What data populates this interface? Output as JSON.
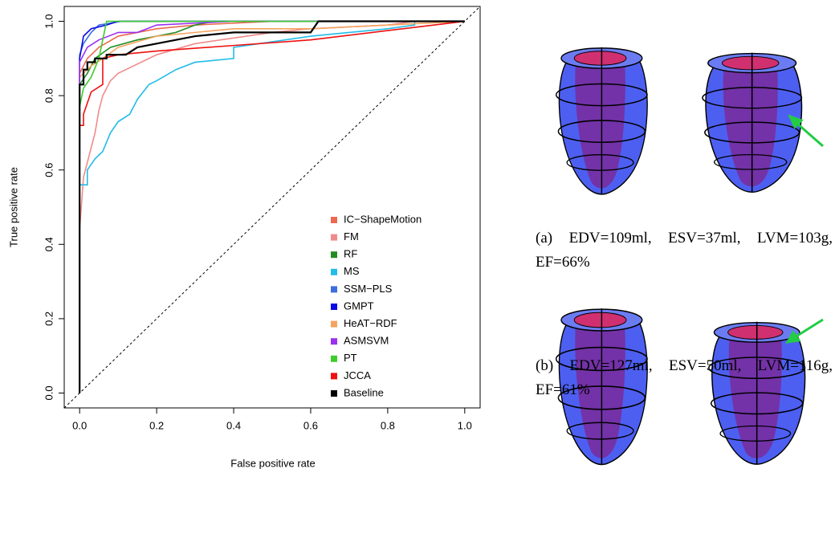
{
  "chart_data": {
    "type": "line",
    "xlabel": "False positive rate",
    "ylabel": "True positive rate",
    "xlim": [
      -0.04,
      1.04
    ],
    "ylim": [
      -0.04,
      1.04
    ],
    "xticks": [
      {
        "value": 0,
        "label": "0.0"
      },
      0.2,
      0.4,
      0.6,
      0.8,
      {
        "value": 1,
        "label": "1.0"
      }
    ],
    "yticks": [
      {
        "value": 0,
        "label": "0.0"
      },
      0.2,
      0.4,
      0.6,
      0.8,
      {
        "value": 1,
        "label": "1.0"
      }
    ],
    "diagonal": true,
    "legend": "bottom-right",
    "series": [
      {
        "name": "IC−ShapeMotion",
        "color": "#ec6a50",
        "x": [
          0,
          0,
          0.02,
          0.05,
          0.1,
          0.2,
          0.3,
          0.5,
          1
        ],
        "values": [
          0,
          0.86,
          0.9,
          0.93,
          0.96,
          0.98,
          0.99,
          1,
          1
        ]
      },
      {
        "name": "FM",
        "color": "#f08a8a",
        "x": [
          0,
          0,
          0.01,
          0.02,
          0.03,
          0.04,
          0.05,
          0.06,
          0.08,
          0.1,
          0.14,
          0.2,
          0.3,
          0.5,
          0.6,
          0.8,
          0.87,
          1
        ],
        "values": [
          0,
          0.44,
          0.58,
          0.62,
          0.66,
          0.7,
          0.76,
          0.8,
          0.84,
          0.86,
          0.88,
          0.91,
          0.94,
          0.97,
          0.98,
          0.99,
          1,
          1
        ]
      },
      {
        "name": "RF",
        "color": "#228b22",
        "x": [
          0,
          0,
          0.02,
          0.04,
          0.08,
          0.15,
          0.25,
          0.3,
          0.35,
          1
        ],
        "values": [
          0,
          0.83,
          0.86,
          0.9,
          0.93,
          0.95,
          0.97,
          0.99,
          1,
          1
        ]
      },
      {
        "name": "MS",
        "color": "#22bce8",
        "x": [
          0,
          0,
          0.02,
          0.02,
          0.04,
          0.06,
          0.08,
          0.1,
          0.13,
          0.15,
          0.18,
          0.2,
          0.25,
          0.3,
          0.4,
          0.4,
          0.6,
          0.8,
          0.87,
          0.87,
          1
        ],
        "values": [
          0,
          0.56,
          0.56,
          0.6,
          0.63,
          0.65,
          0.7,
          0.73,
          0.75,
          0.79,
          0.83,
          0.84,
          0.87,
          0.89,
          0.9,
          0.93,
          0.96,
          0.98,
          0.99,
          1,
          1
        ]
      },
      {
        "name": "SSM−PLS",
        "color": "#3d6ee0",
        "x": [
          0,
          0,
          0.01,
          0.03,
          0.05,
          0.11,
          1
        ],
        "values": [
          0,
          0.91,
          0.94,
          0.97,
          0.99,
          1,
          1
        ]
      },
      {
        "name": "GMPT",
        "color": "#0a0ae8",
        "x": [
          0,
          0,
          0.01,
          0.03,
          0.07,
          0.1,
          1
        ],
        "values": [
          0,
          0.9,
          0.96,
          0.98,
          0.99,
          1,
          1
        ]
      },
      {
        "name": "HeAT−RDF",
        "color": "#f4a460",
        "x": [
          0,
          0,
          0.03,
          0.06,
          0.1,
          0.2,
          0.4,
          0.6,
          0.8,
          1
        ],
        "values": [
          0,
          0.85,
          0.88,
          0.9,
          0.93,
          0.96,
          0.98,
          0.98,
          0.99,
          1
        ]
      },
      {
        "name": "ASMSVM",
        "color": "#9b30ef",
        "x": [
          0,
          0,
          0.02,
          0.05,
          0.1,
          0.15,
          0.2,
          0.4,
          1
        ],
        "values": [
          0,
          0.89,
          0.93,
          0.95,
          0.97,
          0.97,
          0.99,
          1,
          1
        ]
      },
      {
        "name": "PT",
        "color": "#3ccc2c",
        "x": [
          0,
          0,
          0.01,
          0.03,
          0.05,
          0.07,
          1
        ],
        "values": [
          0,
          0.77,
          0.82,
          0.85,
          0.9,
          1,
          1
        ]
      },
      {
        "name": "JCCA",
        "color": "#ee1010",
        "x": [
          0,
          0,
          0.01,
          0.01,
          0.02,
          0.03,
          0.06,
          0.06,
          0.1,
          0.2,
          0.4,
          0.6,
          0.8,
          1
        ],
        "values": [
          0,
          0.72,
          0.72,
          0.75,
          0.78,
          0.81,
          0.83,
          0.9,
          0.91,
          0.92,
          0.935,
          0.95,
          0.975,
          1
        ]
      },
      {
        "name": "Baseline",
        "color": "#000000",
        "x": [
          0,
          0,
          0.01,
          0.01,
          0.02,
          0.02,
          0.04,
          0.04,
          0.07,
          0.07,
          0.12,
          0.15,
          0.2,
          0.3,
          0.4,
          0.6,
          0.62,
          1
        ],
        "values": [
          0,
          0.83,
          0.83,
          0.87,
          0.87,
          0.89,
          0.89,
          0.9,
          0.9,
          0.91,
          0.91,
          0.93,
          0.94,
          0.96,
          0.97,
          0.97,
          1,
          1
        ]
      }
    ]
  },
  "captions": [
    "(a) EDV=109ml, ESV=37ml, LVM=103g, EF=66%",
    "(b) EDV=127ml, ESV=50ml, LVM=116g, EF=61%"
  ]
}
